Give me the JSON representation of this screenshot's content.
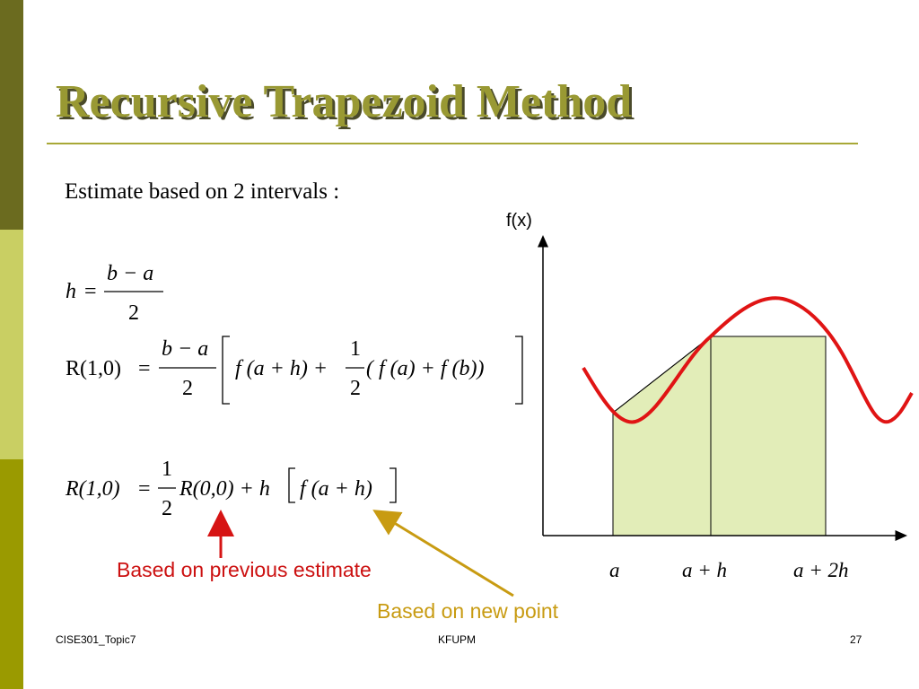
{
  "slide": {
    "title": "Recursive Trapezoid Method",
    "estimate_text": "Estimate  based  on  2  intervals :",
    "eq_h": {
      "lhs": "h",
      "eq": "=",
      "num": "b − a",
      "den": "2"
    },
    "eq_r10": {
      "lhs": "R(1,0)",
      "eq": "=",
      "num": "b − a",
      "den": "2",
      "term1": "f (a + h) +",
      "half_num": "1",
      "half_den": "2",
      "term2": "( f (a) + f (b))"
    },
    "eq_recursive": {
      "lhs": "R(1,0)",
      "eq": "=",
      "num": "1",
      "den": "2",
      "rhs": "R(0,0) + h",
      "bracket": "f (a + h)"
    },
    "annotation_previous": "Based on previous estimate",
    "annotation_new_point": "Based on new point",
    "colors": {
      "curve": "#e01414",
      "fill": "#e2edb8",
      "arrow_gold": "#c89b12",
      "arrow_red": "#d61414",
      "title": "#999933"
    }
  },
  "graph": {
    "y_axis_label": "f(x)",
    "x_labels": [
      "a",
      "a + h",
      "a + 2h"
    ]
  },
  "footer": {
    "left": "CISE301_Topic7",
    "center": "KFUPM",
    "page_number": "27"
  }
}
